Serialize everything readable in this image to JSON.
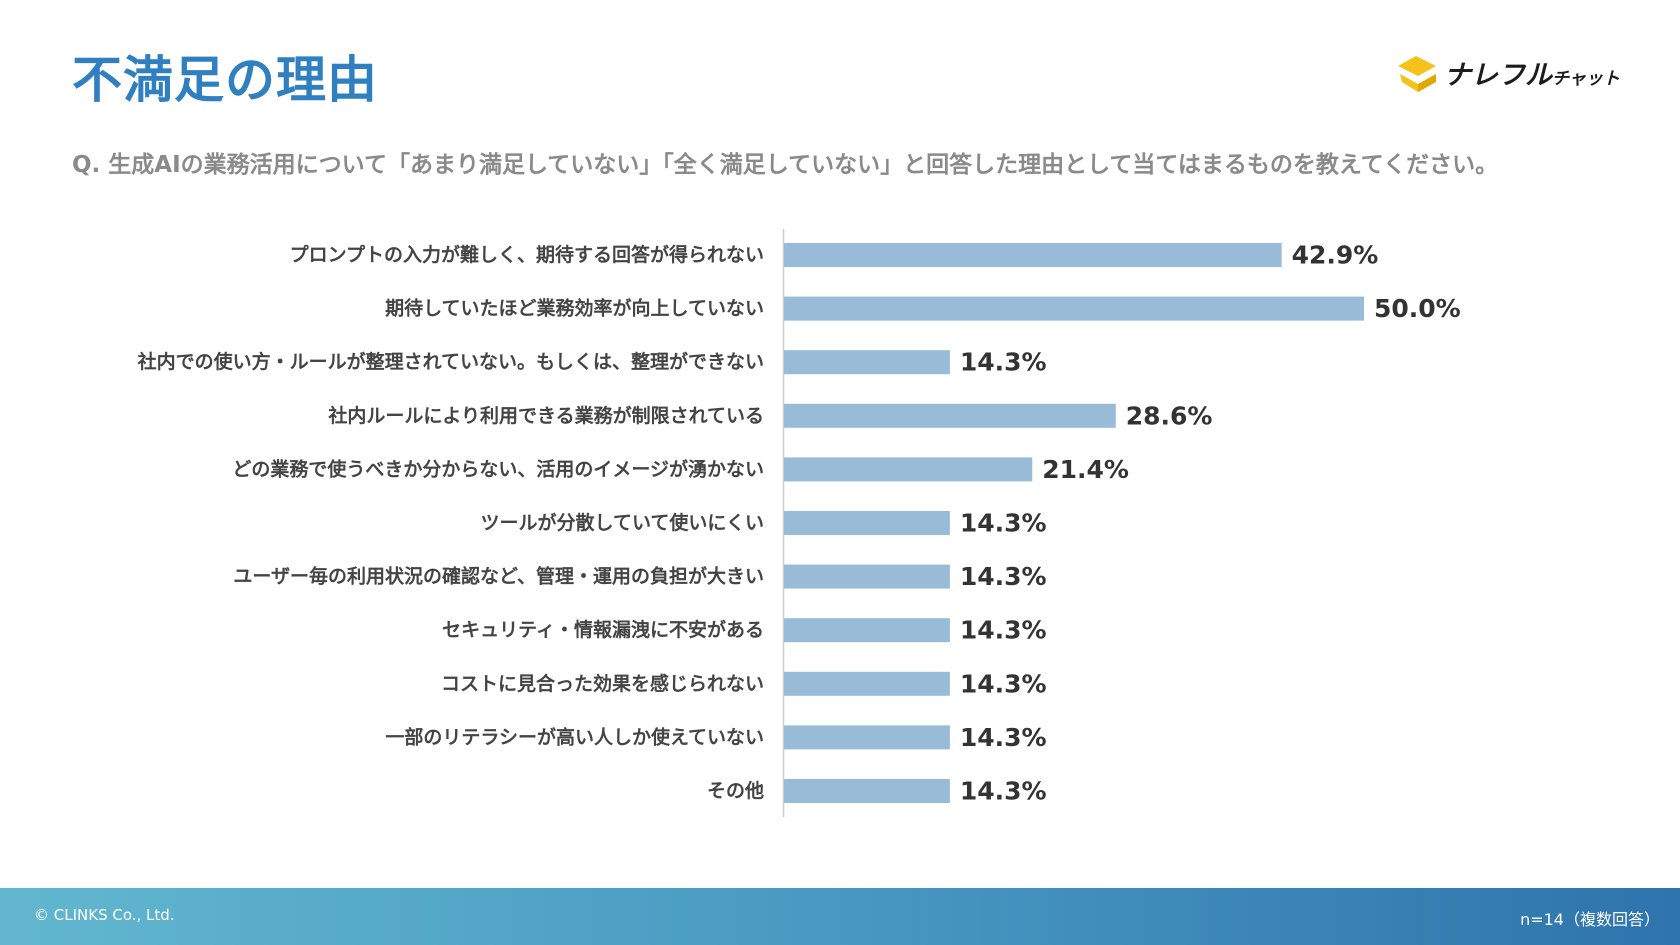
{
  "header": {
    "title": "不満足の理由",
    "question": "Q. 生成AIの業務活用について「あまり満足していない」「全く満足していない」と回答した理由として当てはまるものを教えてください。"
  },
  "logo": {
    "brand_main": "ナレフル",
    "brand_small": "チャット",
    "icon": "yellow-chevron-logo-icon"
  },
  "colors": {
    "title": "#2f7fc1",
    "bar": "#98bcd8",
    "axis": "#cccccc",
    "footer_start": "#62b7cf",
    "footer_end": "#2f74ad"
  },
  "chart_data": {
    "type": "bar",
    "orientation": "horizontal",
    "title": "",
    "xlabel": "",
    "ylabel": "",
    "xlim": [
      0,
      60
    ],
    "value_suffix": "%",
    "grid": false,
    "legend": "none",
    "categories": [
      "プロンプトの入力が難しく、期待する回答が得られない",
      "期待していたほど業務効率が向上していない",
      "社内での使い方・ルールが整理されていない。もしくは、整理ができない",
      "社内ルールにより利用できる業務が制限されている",
      "どの業務で使うべきか分からない、活用のイメージが湧かない",
      "ツールが分散していて使いにくい",
      "ユーザー毎の利用状況の確認など、管理・運用の負担が大きい",
      "セキュリティ・情報漏洩に不安がある",
      "コストに見合った効果を感じられない",
      "一部のリテラシーが高い人しか使えていない",
      "その他"
    ],
    "values": [
      42.9,
      50.0,
      14.3,
      28.6,
      21.4,
      14.3,
      14.3,
      14.3,
      14.3,
      14.3,
      14.3
    ]
  },
  "footer": {
    "copyright": "© CLINKS Co., Ltd.",
    "sample_note": "n=14（複数回答）"
  }
}
